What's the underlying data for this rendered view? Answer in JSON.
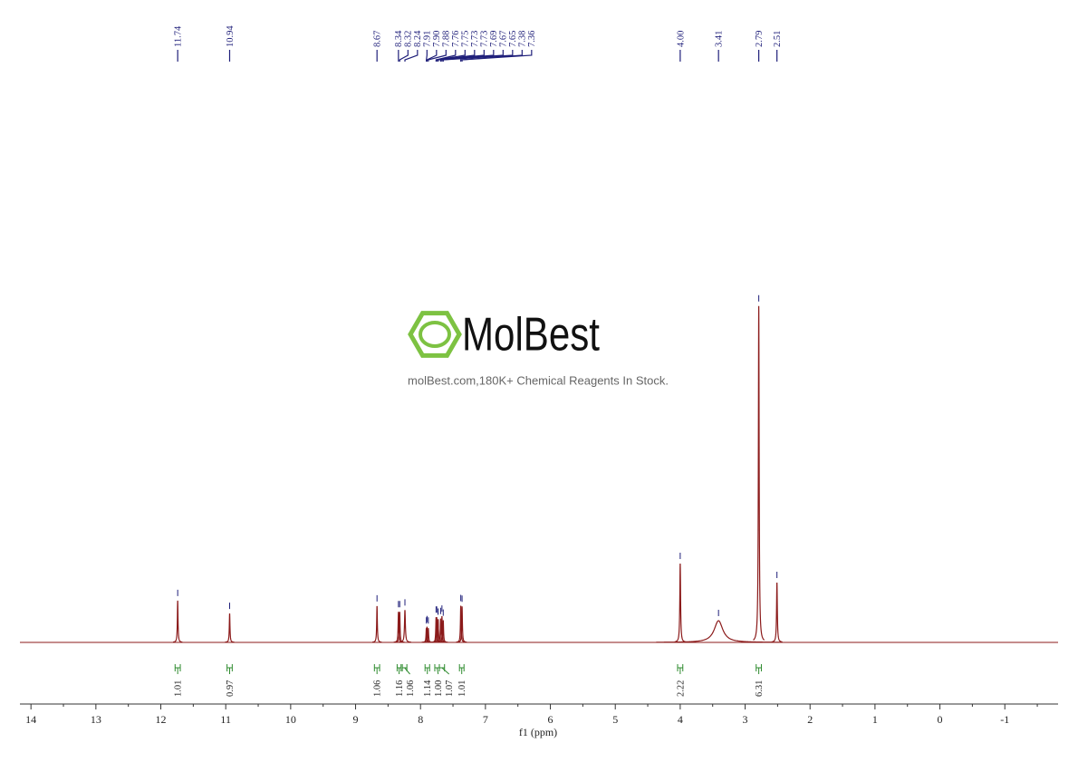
{
  "chart_data": {
    "type": "nmr",
    "xlabel": "f1 (ppm)",
    "xlim": [
      14.17,
      -1.82
    ],
    "ylim": [
      0,
      100
    ],
    "xticks": [
      14,
      13,
      12,
      11,
      10,
      9,
      8,
      7,
      6,
      5,
      4,
      3,
      2,
      1,
      0,
      -1
    ],
    "minor_xticks": [
      13.5,
      12.5,
      11.5,
      10.5,
      9.5,
      8.5,
      7.5,
      6.5,
      5.5,
      4.5,
      3.5,
      2.5,
      1.5,
      0.5,
      -0.5,
      -1.5
    ],
    "color": "#8b1a1a",
    "label_color": "#1f1f7a",
    "integral_color": "#2e8b2e",
    "peaks": [
      {
        "shift": 11.74,
        "height": 12.3,
        "width": 0.006
      },
      {
        "shift": 10.94,
        "height": 8.5,
        "width": 0.006
      },
      {
        "shift": 8.67,
        "height": 10.7,
        "width": 0.006
      },
      {
        "shift": 8.34,
        "height": 9.0,
        "width": 0.006
      },
      {
        "shift": 8.32,
        "height": 9.0,
        "width": 0.006
      },
      {
        "shift": 8.24,
        "height": 9.5,
        "width": 0.008
      },
      {
        "shift": 7.91,
        "height": 4.2,
        "width": 0.006
      },
      {
        "shift": {
          "value": 7.9,
          "label": "7.90"
        },
        "height": 4.6,
        "width": 0.006
      },
      {
        "shift": 7.88,
        "height": 4.2,
        "width": 0.006
      },
      {
        "shift": 7.76,
        "height": 7.4,
        "width": 0.006
      },
      {
        "shift": 7.75,
        "height": 7.4,
        "width": 0.006
      },
      {
        "shift": 7.73,
        "height": 6.8,
        "width": 0.006
      },
      {
        "shift": 7.73,
        "height": 6.8,
        "width": 0.006
      },
      {
        "shift": 7.69,
        "height": 7.0,
        "width": 0.006
      },
      {
        "shift": 7.67,
        "height": 7.7,
        "width": 0.006
      },
      {
        "shift": 7.65,
        "height": 6.5,
        "width": 0.006
      },
      {
        "shift": 7.38,
        "height": 10.8,
        "width": 0.006
      },
      {
        "shift": 7.36,
        "height": 10.6,
        "width": 0.006
      },
      {
        "shift": {
          "value": 4,
          "label": "4.00"
        },
        "height": 23.2,
        "width": 0.007
      },
      {
        "shift": 3.41,
        "height": 6.4,
        "width": 0.08
      },
      {
        "shift": 2.79,
        "height": 99,
        "width": 0.007
      },
      {
        "shift": 2.51,
        "height": 17.6,
        "width": 0.007
      }
    ],
    "integrals": [
      {
        "from": 11.78,
        "to": 11.7,
        "value": 1.01
      },
      {
        "from": 10.98,
        "to": 10.9,
        "value": 0.97
      },
      {
        "from": 8.71,
        "to": 8.63,
        "value": 1.06
      },
      {
        "from": 8.36,
        "to": 8.3,
        "value": 1.16
      },
      {
        "from": 8.28,
        "to": 8.21,
        "value": 1.06
      },
      {
        "from": 7.93,
        "to": 7.86,
        "value": 1.14
      },
      {
        "from": 7.78,
        "to": 7.71,
        "value": {
          "value": 1,
          "label": "1.00"
        }
      },
      {
        "from": 7.71,
        "to": 7.63,
        "value": 1.07
      },
      {
        "from": 7.4,
        "to": 7.33,
        "value": 1.01
      },
      {
        "from": 4.04,
        "to": 3.96,
        "value": 2.22
      },
      {
        "from": 2.83,
        "to": 2.75,
        "value": 6.31
      }
    ]
  },
  "watermark": {
    "logo": "MolBest",
    "text": "molBest.com,180K+ Chemical Reagents In Stock."
  }
}
